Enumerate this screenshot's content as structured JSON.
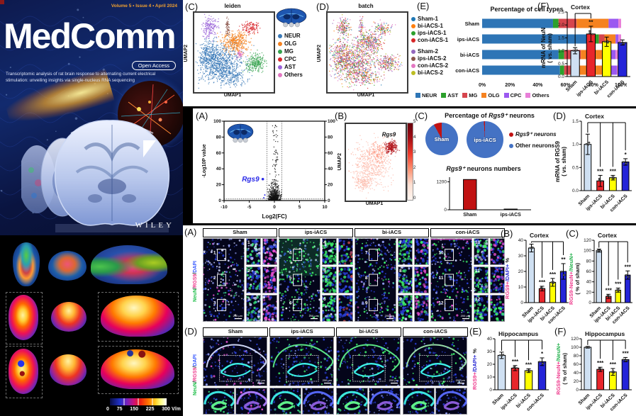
{
  "cover": {
    "volume_line": "Volume 5 • Issue 4 • April 2024",
    "title": "MedComm",
    "open_access": "Open Access",
    "subtitle": "Transcriptomic analysis of rat brain response to alternating current electrical stimulation: unveiling insights via single-nucleus RNA sequencing",
    "publisher": "WILEY"
  },
  "simulation": {
    "colorbar_ticks": [
      "0",
      "75",
      "150",
      "225",
      "300"
    ],
    "colorbar_unit": "V/m"
  },
  "panels": {
    "umap_leiden": {
      "label": "(C)",
      "title": "leiden",
      "xlabel": "UMAP1",
      "ylabel": "UMAP2",
      "legend": [
        {
          "name": "NEUR",
          "color": "#3b7ab8"
        },
        {
          "name": "OLG",
          "color": "#f58220"
        },
        {
          "name": "MG",
          "color": "#35a24e"
        },
        {
          "name": "CPC",
          "color": "#d8262c"
        },
        {
          "name": "AST",
          "color": "#9a63d8"
        },
        {
          "name": "Others",
          "color": "#e377c2"
        }
      ]
    },
    "umap_batch": {
      "label": "(D)",
      "title": "batch",
      "xlabel": "UMAP1",
      "ylabel": "UMAP2",
      "legend": [
        {
          "name": "Sham-1",
          "color": "#1f77b4"
        },
        {
          "name": "bi-iACS-1",
          "color": "#ff7f0e"
        },
        {
          "name": "ips-iACS-1",
          "color": "#2ca02c"
        },
        {
          "name": "con-iACS-1",
          "color": "#d62728",
          "gapAfter": true
        },
        {
          "name": "Sham-2",
          "color": "#9467bd"
        },
        {
          "name": "ips-iACS-2",
          "color": "#8c564b"
        },
        {
          "name": "con-iACS-2",
          "color": "#e377c2"
        },
        {
          "name": "bi-iACS-2",
          "color": "#bcbd22"
        }
      ]
    },
    "cell_types": {
      "label": "(E)",
      "title": "Percentage of cell types"
    },
    "neun": {
      "label": "(F)",
      "ylabel_line1": "mRNA of NeuN",
      "ylabel_line2": "( vs. sham)"
    },
    "volcano": {
      "label": "(A)"
    },
    "umap_rgs9": {
      "label": "(B)",
      "xlabel": "UMAP1",
      "ylabel": "UMAP2"
    },
    "pies": {
      "label": "(C)",
      "title_segments": [
        [
          "Percentage of ",
          "#111"
        ],
        [
          "Rgs9⁺",
          "#111",
          "i"
        ],
        [
          " neurons",
          "#111"
        ]
      ],
      "numbers_title_segments": [
        [
          "Rgs9⁺",
          "#111",
          "i"
        ],
        [
          " neurons numbers",
          "#111"
        ]
      ],
      "legend": [
        {
          "name": "Rgs9⁺ neurons",
          "color": "#c11212",
          "italic": true
        },
        {
          "name": "Other neurons",
          "color": "#4472c4"
        }
      ]
    },
    "rgs9_mrna": {
      "label": "(D)",
      "ylabel_line1": "mRNA of RGS9",
      "ylabel_line2": "( vs. sham)"
    },
    "cortex_dapi": {
      "label": "(B)",
      "ylabel_segments": [
        [
          "RGS9+",
          "#ee3a8c"
        ],
        [
          "/DAPI+",
          "#2a2ad4"
        ],
        [
          " %",
          "#111"
        ]
      ]
    },
    "cortex_neun": {
      "label": "(C)",
      "ylabel_segments": [
        [
          "RGS9-NeuN+",
          "#ee3a8c"
        ],
        [
          "/NeuN+",
          "#23b14d"
        ]
      ],
      "ylabel_line2": "( % of sham)"
    },
    "hippo_dapi": {
      "label": "(E)",
      "ylabel_segments": [
        [
          "RGS9+",
          "#ee3a8c"
        ],
        [
          "/DAPI+",
          "#2a2ad4"
        ],
        [
          " %",
          "#111"
        ]
      ]
    },
    "hippo_neun": {
      "label": "(F)",
      "ylabel_segments": [
        [
          "RGS9-NeuN+",
          "#ee3a8c"
        ],
        [
          "/NeuN+",
          "#23b14d"
        ]
      ],
      "ylabel_line2": "( % of sham)"
    }
  },
  "microscopy": {
    "channel_label_segments": [
      [
        "NeuN",
        "#23c04d"
      ],
      [
        "/",
        "#111"
      ],
      [
        "RGS9",
        "#ee3a8c"
      ],
      [
        "/",
        "#111"
      ],
      [
        "DAPI",
        "#3a5bff"
      ]
    ],
    "scale_text": "200 μm",
    "cortex": {
      "label": "(A)",
      "groups": [
        {
          "name": "Sham",
          "style": "sham",
          "numbers": [
            "1",
            "2",
            "3"
          ]
        },
        {
          "name": "ips-iACS",
          "style": "ips",
          "numbers": [
            "4",
            "5",
            "6"
          ]
        },
        {
          "name": "bi-iACS",
          "style": "bi",
          "numbers": [
            "7",
            "8",
            "9"
          ]
        },
        {
          "name": "con-iACS",
          "style": "con",
          "numbers": [
            "10",
            "11",
            "12"
          ]
        }
      ]
    },
    "hippocampus": {
      "label": "(D)",
      "groups": [
        {
          "name": "Sham",
          "style": "sham"
        },
        {
          "name": "ips-iACS",
          "style": "ips"
        },
        {
          "name": "bi-iACS",
          "style": "bi"
        },
        {
          "name": "con-iACS",
          "style": "con"
        }
      ]
    }
  },
  "chart_data": [
    {
      "id": "cell_types",
      "type": "stacked-bar-horizontal",
      "title": "Percentage of cell types",
      "categories": [
        "Sham",
        "ips-iACS",
        "bi-iACS",
        "con-iACS"
      ],
      "series": [
        {
          "name": "NEUR",
          "color": "#2e75b6",
          "values": [
            51,
            81,
            55,
            56
          ]
        },
        {
          "name": "AST",
          "color": "#2ca02c",
          "values": [
            4,
            3,
            4,
            3
          ]
        },
        {
          "name": "MG",
          "color": "#d6454d",
          "values": [
            13,
            4,
            12,
            5
          ]
        },
        {
          "name": "OLG",
          "color": "#f58220",
          "values": [
            23,
            8,
            19,
            26
          ]
        },
        {
          "name": "CPC",
          "color": "#9b59f0",
          "values": [
            7,
            2,
            6,
            7
          ]
        },
        {
          "name": "Others",
          "color": "#e87fd8",
          "values": [
            2,
            2,
            4,
            3
          ]
        }
      ],
      "xlim": [
        0,
        100
      ],
      "xticks": [
        "0%",
        "20%",
        "40%",
        "60%",
        "80%",
        "100%"
      ],
      "legend_position": "bottom"
    },
    {
      "id": "neun",
      "type": "bar",
      "title": "Cortex",
      "ylabel": "mRNA of NeuN ( vs. sham)",
      "categories": [
        "Sham",
        "ips-iACS",
        "bi-iACS",
        "con-iACS"
      ],
      "values": [
        1.0,
        1.65,
        1.35,
        1.32
      ],
      "errors": [
        0.12,
        0.3,
        0.18,
        0.1
      ],
      "bar_colors": [
        "#cfe0f2",
        "#e8262b",
        "#ffff00",
        "#2424d8"
      ],
      "sig": [
        "",
        "**",
        "",
        ""
      ],
      "bracket": "pair01",
      "ylim": [
        0,
        2.5
      ],
      "yticks": [
        0,
        0.5,
        1,
        1.5,
        2,
        2.5
      ],
      "ytick_labels": [
        "0.0",
        "0.5",
        "1.0",
        "1.5",
        "2.0",
        "2.5"
      ]
    },
    {
      "id": "volcano",
      "type": "scatter",
      "xlabel": "Log2(FC)",
      "ylabel": "-Log10P value",
      "xlim": [
        -10,
        10
      ],
      "ylim": [
        0,
        100
      ],
      "xticks": [
        -10,
        -5,
        0,
        5,
        10
      ],
      "yticks": [
        0,
        20,
        40,
        60,
        80,
        100
      ],
      "thresholds_x": [
        -1.5,
        1.5
      ],
      "threshold_y": 2,
      "annotation": {
        "text": "Rgs9",
        "x": -2.3,
        "y": 27,
        "color": "#2a2ae8"
      }
    },
    {
      "id": "umap_leiden",
      "type": "scatter-clusters",
      "clusters": [
        {
          "color": "#3b7ab8",
          "x": 0.33,
          "y": 0.64,
          "rx": 0.14,
          "ry": 0.12,
          "n": 800
        },
        {
          "color": "#3b7ab8",
          "x": 0.18,
          "y": 0.52,
          "rx": 0.06,
          "ry": 0.08,
          "n": 220
        },
        {
          "color": "#3b7ab8",
          "x": 0.48,
          "y": 0.8,
          "rx": 0.09,
          "ry": 0.05,
          "n": 160
        },
        {
          "color": "#f58220",
          "x": 0.52,
          "y": 0.37,
          "rx": 0.08,
          "ry": 0.06,
          "n": 380
        },
        {
          "color": "#35a24e",
          "x": 0.77,
          "y": 0.63,
          "rx": 0.06,
          "ry": 0.05,
          "n": 230
        },
        {
          "color": "#d8262c",
          "x": 0.7,
          "y": 0.19,
          "rx": 0.05,
          "ry": 0.035,
          "n": 120
        },
        {
          "color": "#9a63d8",
          "x": 0.2,
          "y": 0.18,
          "rx": 0.045,
          "ry": 0.06,
          "n": 170
        },
        {
          "color": "#8c564b",
          "x": 0.42,
          "y": 0.17,
          "rx": 0.015,
          "ry": 0.055,
          "n": 55
        },
        {
          "color": "#e377c2",
          "x": 0.57,
          "y": 0.52,
          "rx": 0.022,
          "ry": 0.022,
          "n": 45
        }
      ]
    },
    {
      "id": "umap_batch",
      "type": "scatter-clusters",
      "palette": [
        "#e377c2",
        "#e377c2",
        "#e377c2",
        "#9467bd",
        "#1f77b4",
        "#d62728",
        "#8c564b",
        "#bcbd22",
        "#2ca02c",
        "#ff7f0e"
      ],
      "clusters": [
        {
          "x": 0.33,
          "y": 0.64,
          "rx": 0.14,
          "ry": 0.12,
          "n": 800
        },
        {
          "x": 0.18,
          "y": 0.52,
          "rx": 0.06,
          "ry": 0.08,
          "n": 220
        },
        {
          "x": 0.48,
          "y": 0.8,
          "rx": 0.09,
          "ry": 0.05,
          "n": 160
        },
        {
          "x": 0.52,
          "y": 0.37,
          "rx": 0.08,
          "ry": 0.06,
          "n": 380
        },
        {
          "x": 0.77,
          "y": 0.63,
          "rx": 0.06,
          "ry": 0.05,
          "n": 230
        },
        {
          "x": 0.7,
          "y": 0.19,
          "rx": 0.05,
          "ry": 0.035,
          "n": 120
        },
        {
          "x": 0.2,
          "y": 0.18,
          "rx": 0.045,
          "ry": 0.06,
          "n": 170
        },
        {
          "x": 0.42,
          "y": 0.17,
          "rx": 0.015,
          "ry": 0.055,
          "n": 55
        }
      ]
    },
    {
      "id": "umap_rgs9",
      "type": "scatter-expression",
      "gene": "Rgs9",
      "colorbar": {
        "min": 0,
        "max": 5,
        "ticks": [
          0,
          1,
          2,
          3,
          4,
          5
        ]
      },
      "clusters": [
        {
          "color": "#fcb8a8",
          "x": 0.42,
          "y": 0.52,
          "rx": 0.16,
          "ry": 0.14,
          "n": 520
        },
        {
          "color": "#fcb8a8",
          "x": 0.28,
          "y": 0.76,
          "rx": 0.08,
          "ry": 0.05,
          "n": 140
        },
        {
          "color": "#fc8a72",
          "x": 0.55,
          "y": 0.38,
          "rx": 0.07,
          "ry": 0.06,
          "n": 90
        },
        {
          "color": "#b11218",
          "x": 0.76,
          "y": 0.3,
          "rx": 0.045,
          "ry": 0.035,
          "n": 220
        }
      ]
    },
    {
      "id": "pies",
      "type": "pie",
      "title": "Percentage of Rgs9⁺ neurons",
      "pies": [
        {
          "label": "Sham",
          "slices": [
            {
              "name": "Rgs9⁺ neurons",
              "value": 8,
              "color": "#c11212"
            },
            {
              "name": "Other neurons",
              "value": 92,
              "color": "#4472c4"
            }
          ]
        },
        {
          "label": "ips-iACS",
          "slices": [
            {
              "name": "Rgs9⁺ neurons",
              "value": 1,
              "color": "#c11212"
            },
            {
              "name": "Other neurons",
              "value": 99,
              "color": "#4472c4"
            }
          ]
        }
      ]
    },
    {
      "id": "rgs9_numbers",
      "type": "bar",
      "title": "Rgs9⁺ neurons numbers",
      "categories": [
        "Sham",
        "ips-iACS"
      ],
      "values": [
        1300,
        30
      ],
      "bar_colors": [
        "#c11212",
        "#c11212"
      ],
      "ylim": [
        0,
        1400
      ],
      "yticks": [
        0,
        1200
      ],
      "ytick_labels": [
        "0",
        "1200"
      ]
    },
    {
      "id": "rgs9_mrna",
      "type": "bar",
      "title": "Cortex",
      "ylabel": "mRNA of RGS9 ( vs. sham)",
      "categories": [
        "Sham",
        "ips-iACS",
        "bi-iACS",
        "con-iACS"
      ],
      "values": [
        1.0,
        0.21,
        0.28,
        0.62
      ],
      "errors": [
        0.22,
        0.12,
        0.05,
        0.07
      ],
      "bar_colors": [
        "#cfe0f2",
        "#e8262b",
        "#ffff00",
        "#2424d8"
      ],
      "sig": [
        "",
        "***",
        "***",
        "*"
      ],
      "bracket": "drops",
      "ylim": [
        0,
        1.5
      ],
      "yticks": [
        0,
        0.5,
        1,
        1.5
      ],
      "ytick_labels": [
        "0.0",
        "0.5",
        "1.0",
        "1.5"
      ]
    },
    {
      "id": "cortex_dapi",
      "type": "bar",
      "title": "Cortex",
      "ylabel": "RGS9+/DAPI+ %",
      "categories": [
        "Sham",
        "ips-iACS",
        "bi-iACS",
        "con-iACS"
      ],
      "values": [
        35,
        9,
        13,
        20
      ],
      "errors": [
        2.5,
        1.5,
        2.5,
        5
      ],
      "bar_colors": [
        "#cfe0f2",
        "#e8262b",
        "#ffff00",
        "#2424d8"
      ],
      "sig": [
        "",
        "***",
        "***",
        "**"
      ],
      "bracket": "drops",
      "ylim": [
        0,
        40
      ],
      "yticks": [
        0,
        10,
        20,
        30,
        40
      ],
      "ytick_labels": [
        "0",
        "10",
        "20",
        "30",
        "40"
      ]
    },
    {
      "id": "cortex_neun",
      "type": "bar",
      "title": "Cortex",
      "ylabel": "RGS9-NeuN+/NeuN+ (% of sham)",
      "categories": [
        "Sham",
        "ips-iACS",
        "bi-iACS",
        "con-iACS"
      ],
      "values": [
        100,
        12,
        24,
        53
      ],
      "errors": [
        3,
        4,
        4,
        8
      ],
      "bar_colors": [
        "#cfe0f2",
        "#e8262b",
        "#ffff00",
        "#2424d8"
      ],
      "sig": [
        "",
        "***",
        "***",
        "***"
      ],
      "bracket": "drops",
      "ylim": [
        0,
        120
      ],
      "yticks": [
        0,
        20,
        40,
        60,
        80,
        100,
        120
      ],
      "ytick_labels": [
        "0",
        "20",
        "40",
        "60",
        "80",
        "100",
        "120"
      ]
    },
    {
      "id": "hippo_dapi",
      "type": "bar",
      "title": "Hippocampus",
      "ylabel": "RGS9+/DAPI+ %",
      "categories": [
        "Sham",
        "ips-iACS",
        "bi-iACS",
        "con-iACS"
      ],
      "values": [
        27,
        17,
        15,
        22
      ],
      "errors": [
        2.5,
        2,
        1.5,
        3
      ],
      "bar_colors": [
        "#cfe0f2",
        "#e8262b",
        "#ffff00",
        "#2424d8"
      ],
      "sig": [
        "",
        "***",
        "***",
        "*"
      ],
      "bracket": "drops",
      "ylim": [
        0,
        40
      ],
      "yticks": [
        0,
        10,
        20,
        30,
        40
      ],
      "ytick_labels": [
        "0",
        "10",
        "20",
        "30",
        "40"
      ]
    },
    {
      "id": "hippo_neun",
      "type": "bar",
      "title": "Hippocampus",
      "ylabel": "RGS9-NeuN+/NeuN+ (% of sham)",
      "categories": [
        "Sham",
        "ips-iACS",
        "bi-iACS",
        "con-iACS"
      ],
      "values": [
        100,
        48,
        42,
        71
      ],
      "errors": [
        2,
        5,
        8,
        5
      ],
      "bar_colors": [
        "#cfe0f2",
        "#e8262b",
        "#ffff00",
        "#2424d8"
      ],
      "sig": [
        "",
        "***",
        "***",
        "***"
      ],
      "bracket": "drops",
      "ylim": [
        0,
        120
      ],
      "yticks": [
        0,
        20,
        40,
        60,
        80,
        100,
        120
      ],
      "ytick_labels": [
        "0",
        "20",
        "40",
        "60",
        "80",
        "100",
        "120"
      ]
    }
  ]
}
